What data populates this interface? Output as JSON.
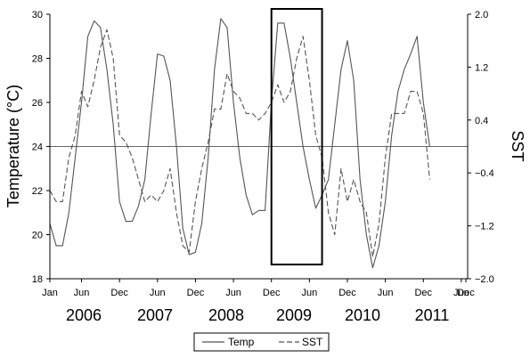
{
  "chart_data": {
    "type": "line",
    "ylabel_left": "Temperature (°C)",
    "ylabel_right": "SST",
    "ylim_left": [
      18,
      30
    ],
    "ylim_right": [
      -2.0,
      2.0
    ],
    "yticks_left": [
      "18",
      "20",
      "22",
      "24",
      "26",
      "28",
      "30"
    ],
    "yticks_right": [
      "−2.0",
      "−1.2",
      "−0.4",
      "0.4",
      "1.2",
      "2.0"
    ],
    "month_ticks": [
      "Jan",
      "Jun",
      "Dec",
      "Jun",
      "Dec",
      "Jun",
      "Dec",
      "Jun",
      "Dec",
      "Jun",
      "Dec",
      "Jun",
      "Dec"
    ],
    "years": [
      "2006",
      "2007",
      "2008",
      "2009",
      "2010",
      "2011"
    ],
    "reference_line_sst": 0.0,
    "highlight_box": {
      "start": "Dec 2008",
      "end": "Aug 2009"
    },
    "legend_position": "bottom",
    "series": [
      {
        "name": "Temp",
        "style": "solid",
        "axis": "left",
        "values": [
          20.5,
          19.5,
          19.5,
          21,
          23.5,
          26,
          29,
          29.7,
          29.4,
          27.5,
          25,
          21.5,
          20.6,
          20.6,
          21.3,
          22.5,
          25.5,
          28.2,
          28.1,
          27,
          24,
          20.3,
          19.1,
          19.2,
          20.5,
          23.5,
          27.5,
          29.8,
          29.4,
          26,
          23.5,
          21.8,
          20.9,
          21.1,
          21.1,
          26,
          29.6,
          29.6,
          28,
          26,
          24,
          22.5,
          21.2,
          21.8,
          22.5,
          25,
          27.5,
          28.8,
          27,
          22.5,
          20,
          18.5,
          19.5,
          21.5,
          24.5,
          26.5,
          27.5,
          28.2,
          29,
          26,
          24
        ]
      },
      {
        "name": "SST",
        "style": "dashed",
        "axis": "left",
        "values": [
          22,
          21.5,
          21.5,
          23.5,
          24.5,
          26.5,
          25.8,
          27,
          28.5,
          29.3,
          28,
          24.5,
          24.2,
          23.5,
          22.5,
          21.5,
          21.8,
          21.5,
          22,
          23,
          21,
          19.5,
          19.2,
          21.5,
          23,
          24.2,
          25.7,
          25.7,
          27.3,
          26.5,
          26.2,
          25.5,
          25.5,
          25.2,
          25.5,
          26,
          26.8,
          26,
          26.5,
          28,
          29,
          27,
          24.5,
          23.5,
          21,
          20,
          23,
          21.5,
          22.5,
          21.5,
          21,
          19,
          20.5,
          23.5,
          25.5,
          25.5,
          25.5,
          26.5,
          26.5,
          25.5,
          22.5
        ]
      }
    ]
  }
}
